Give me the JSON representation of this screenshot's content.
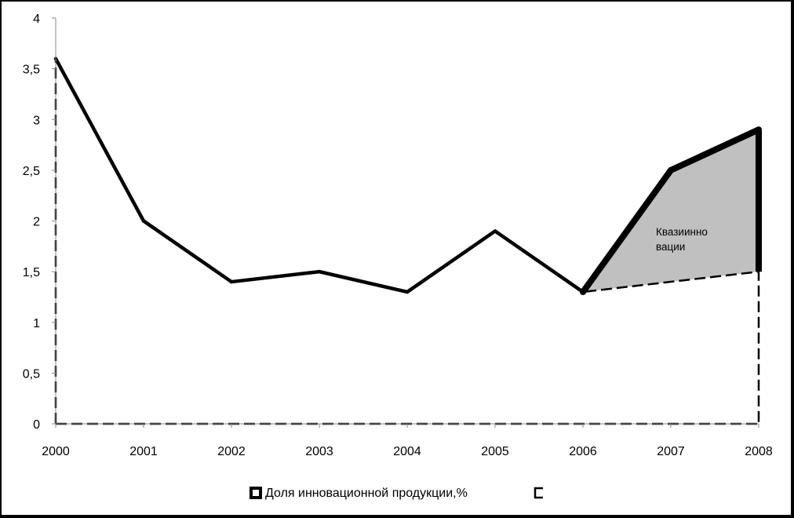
{
  "chart_data": {
    "type": "line",
    "x": [
      "2000",
      "2001",
      "2002",
      "2003",
      "2004",
      "2005",
      "2006",
      "2007",
      "2008"
    ],
    "ylim": [
      0,
      4
    ],
    "y_ticks": [
      "0",
      "0,5",
      "1",
      "1,5",
      "2",
      "2,5",
      "3",
      "3,5",
      "4"
    ],
    "grid": false,
    "series": [
      {
        "name": "Доля инновационной продукции,%",
        "values": [
          3.6,
          2.0,
          1.4,
          1.5,
          1.3,
          1.9,
          1.3,
          2.5,
          2.9
        ],
        "style": "solid-thick"
      },
      {
        "name": "",
        "values": [
          3.6,
          2.0,
          1.4,
          1.5,
          1.3,
          1.9,
          1.3,
          1.4,
          1.5
        ],
        "style": "dashed"
      }
    ],
    "annotation": {
      "lines": [
        "Квазиинно",
        "вации"
      ],
      "fill_color": "#c0c0c0"
    },
    "legend_position": "bottom"
  }
}
